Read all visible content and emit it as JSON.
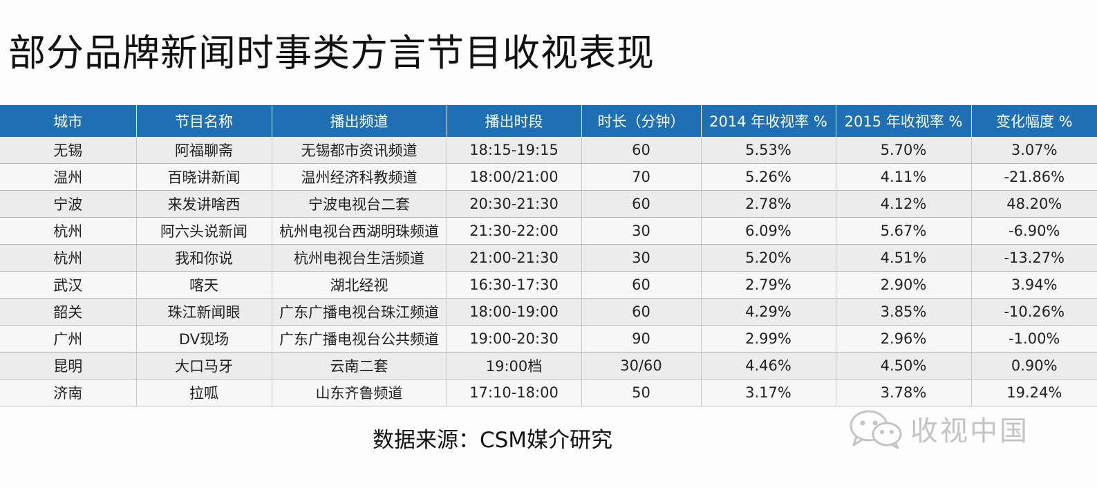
{
  "title": "部分品牌新闻时事类方言节目收视表现",
  "table": {
    "headers": [
      "城市",
      "节目名称",
      "播出频道",
      "播出时段",
      "时长（分钟）",
      "2014 年收视率 %",
      "2015 年收视率 %",
      "变化幅度 %"
    ],
    "rows": [
      [
        "无锡",
        "阿福聊斋",
        "无锡都市资讯频道",
        "18:15-19:15",
        "60",
        "5.53%",
        "5.70%",
        "3.07%"
      ],
      [
        "温州",
        "百晓讲新闻",
        "温州经济科教频道",
        "18:00/21:00",
        "70",
        "5.26%",
        "4.11%",
        "-21.86%"
      ],
      [
        "宁波",
        "来发讲啥西",
        "宁波电视台二套",
        "20:30-21:30",
        "60",
        "2.78%",
        "4.12%",
        "48.20%"
      ],
      [
        "杭州",
        "阿六头说新闻",
        "杭州电视台西湖明珠频道",
        "21:30-22:00",
        "30",
        "6.09%",
        "5.67%",
        "-6.90%"
      ],
      [
        "杭州",
        "我和你说",
        "杭州电视台生活频道",
        "21:00-21:30",
        "30",
        "5.20%",
        "4.51%",
        "-13.27%"
      ],
      [
        "武汉",
        "喀天",
        "湖北经视",
        "16:30-17:30",
        "60",
        "2.79%",
        "2.90%",
        "3.94%"
      ],
      [
        "韶关",
        "珠江新闻眼",
        "广东广播电视台珠江频道",
        "18:00-19:00",
        "60",
        "4.29%",
        "3.85%",
        "-10.26%"
      ],
      [
        "广州",
        "DV现场",
        "广东广播电视台公共频道",
        "19:00-20:30",
        "90",
        "2.99%",
        "2.96%",
        "-1.00%"
      ],
      [
        "昆明",
        "大口马牙",
        "云南二套",
        "19:00档",
        "30/60",
        "4.46%",
        "4.50%",
        "0.90%"
      ],
      [
        "济南",
        "拉呱",
        "山东齐鲁频道",
        "17:10-18:00",
        "50",
        "3.17%",
        "3.78%",
        "19.24%"
      ]
    ]
  },
  "source": "数据来源：CSM媒介研究",
  "watermark": {
    "text": "收视中国",
    "icon": "wechat-icon"
  },
  "colors": {
    "header_bg": "#1f6fb4",
    "header_text": "#ffffff",
    "row_odd": "#ececec",
    "row_even": "#f7f7f7"
  }
}
